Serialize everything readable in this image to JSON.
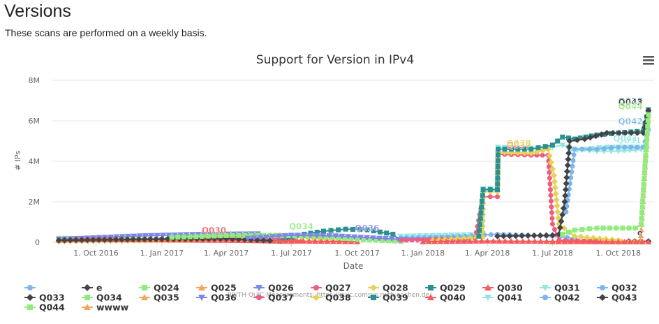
{
  "page": {
    "heading": "Versions",
    "description": "These scans are performed on a weekly basis."
  },
  "menu_icon": "hamburger-menu-icon",
  "chart_data": {
    "type": "line",
    "title": "Support for Version in IPv4",
    "xlabel": "Date",
    "ylabel": "# IPs",
    "credits": "RWTH QUIC Measurements: https://quic.comsys.rwth-aachen.de/",
    "x_range": [
      "2016-08-01",
      "2018-11-20"
    ],
    "ylim": [
      0,
      8000000
    ],
    "y_ticks": [
      {
        "v": 0,
        "label": "0"
      },
      {
        "v": 2000000,
        "label": "2M"
      },
      {
        "v": 4000000,
        "label": "4M"
      },
      {
        "v": 6000000,
        "label": "6M"
      },
      {
        "v": 8000000,
        "label": "8M"
      }
    ],
    "x_ticks": [
      {
        "date": "2016-10-01",
        "label": "1. Oct 2016"
      },
      {
        "date": "2017-01-01",
        "label": "1. Jan 2017"
      },
      {
        "date": "2017-04-01",
        "label": "1. Apr 2017"
      },
      {
        "date": "2017-07-01",
        "label": "1. Jul 2017"
      },
      {
        "date": "2017-10-01",
        "label": "1. Oct 2017"
      },
      {
        "date": "2018-01-01",
        "label": "1. Jan 2018"
      },
      {
        "date": "2018-04-01",
        "label": "1. Apr 2018"
      },
      {
        "date": "2018-07-01",
        "label": "1. Jul 2018"
      },
      {
        "date": "2018-10-01",
        "label": "1. Oct 2018"
      }
    ],
    "grid": true,
    "legend_position": "bottom",
    "series": [
      {
        "name": "",
        "color": "#7cb5ec",
        "marker": "circle",
        "points": []
      },
      {
        "name": "e",
        "color": "#434348",
        "marker": "diamond",
        "label": "e",
        "points": [
          [
            "2018-10-15",
            50000
          ],
          [
            "2018-11-01",
            50000
          ],
          [
            "2018-11-12",
            50000
          ]
        ]
      },
      {
        "name": "Q024",
        "color": "#90ed7d",
        "marker": "square",
        "points": [
          [
            "2016-08-10",
            200000
          ],
          [
            "2016-10-01",
            190000
          ],
          [
            "2017-01-01",
            150000
          ],
          [
            "2017-04-01",
            120000
          ],
          [
            "2017-06-15",
            80000
          ]
        ]
      },
      {
        "name": "Q025",
        "color": "#f7a35c",
        "marker": "triangle",
        "points": [
          [
            "2016-08-10",
            120000
          ],
          [
            "2016-12-01",
            110000
          ],
          [
            "2017-04-01",
            90000
          ],
          [
            "2017-07-01",
            40000
          ]
        ]
      },
      {
        "name": "Q026",
        "color": "#8085e9",
        "marker": "triangle-down",
        "points": [
          [
            "2016-08-10",
            150000
          ],
          [
            "2016-12-01",
            320000
          ],
          [
            "2017-03-01",
            400000
          ],
          [
            "2017-05-15",
            420000
          ],
          [
            "2017-06-15",
            100000
          ]
        ]
      },
      {
        "name": "Q027",
        "color": "#f15c80",
        "marker": "circle",
        "points": [
          [
            "2016-08-10",
            60000
          ],
          [
            "2017-02-01",
            150000
          ],
          [
            "2017-04-15",
            280000
          ],
          [
            "2017-06-01",
            300000
          ],
          [
            "2017-07-15",
            60000
          ]
        ]
      },
      {
        "name": "Q028",
        "color": "#e4d354",
        "marker": "diamond",
        "points": [
          [
            "2016-08-10",
            40000
          ],
          [
            "2017-04-01",
            120000
          ],
          [
            "2017-06-15",
            350000
          ],
          [
            "2017-08-01",
            200000
          ],
          [
            "2017-10-01",
            30000
          ]
        ]
      },
      {
        "name": "Q029",
        "color": "#2b908f",
        "marker": "square",
        "points": [
          [
            "2017-06-15",
            50000
          ],
          [
            "2017-07-10",
            350000
          ],
          [
            "2017-08-15",
            550000
          ],
          [
            "2017-09-15",
            650000
          ],
          [
            "2017-10-15",
            620000
          ],
          [
            "2017-11-20",
            400000
          ],
          [
            "2017-12-01",
            50000
          ]
        ]
      },
      {
        "name": "Q030",
        "color": "#f45b5b",
        "marker": "triangle",
        "label": "Q030",
        "points": [
          [
            "2016-08-10",
            100000
          ],
          [
            "2016-10-01",
            140000
          ],
          [
            "2017-01-01",
            120000
          ],
          [
            "2017-04-01",
            100000
          ],
          [
            "2017-07-01",
            60000
          ],
          [
            "2017-10-01",
            30000
          ]
        ]
      },
      {
        "name": "Q031",
        "color": "#91e8e1",
        "marker": "triangle-down",
        "label": "Q031",
        "points": [
          [
            "2017-12-01",
            300000
          ],
          [
            "2018-02-01",
            350000
          ],
          [
            "2018-03-25",
            400000
          ],
          [
            "2018-03-26",
            2650000
          ],
          [
            "2018-04-15",
            2650000
          ],
          [
            "2018-04-16",
            4700000
          ],
          [
            "2018-06-01",
            4650000
          ],
          [
            "2018-07-01",
            4700000
          ],
          [
            "2018-07-15",
            4800000
          ],
          [
            "2018-08-01",
            4600000
          ],
          [
            "2018-09-01",
            4500000
          ],
          [
            "2018-10-01",
            4500000
          ],
          [
            "2018-11-10",
            4600000
          ]
        ]
      },
      {
        "name": "Q032",
        "color": "#7cb5ec",
        "marker": "circle",
        "points": [
          [
            "2017-12-01",
            200000
          ],
          [
            "2018-03-01",
            300000
          ],
          [
            "2018-04-15",
            400000
          ],
          [
            "2018-07-01",
            300000
          ],
          [
            "2018-08-01",
            200000
          ]
        ]
      },
      {
        "name": "Q033",
        "color": "#434348",
        "marker": "diamond",
        "points": [
          [
            "2016-08-10",
            100000
          ],
          [
            "2017-01-01",
            160000
          ],
          [
            "2017-04-01",
            180000
          ],
          [
            "2017-06-01",
            80000
          ]
        ]
      },
      {
        "name": "Q034",
        "color": "#90ed7d",
        "marker": "square",
        "label": "Q034",
        "points": [
          [
            "2017-01-15",
            250000
          ],
          [
            "2017-04-01",
            330000
          ],
          [
            "2017-06-01",
            350000
          ],
          [
            "2017-08-01",
            300000
          ],
          [
            "2017-10-01",
            150000
          ],
          [
            "2017-12-01",
            50000
          ]
        ]
      },
      {
        "name": "Q035",
        "color": "#f7a35c",
        "marker": "triangle",
        "label": "Q035",
        "points": [
          [
            "2018-07-01",
            20000
          ],
          [
            "2018-09-01",
            40000
          ],
          [
            "2018-11-01",
            40000
          ],
          [
            "2018-11-12",
            6550000
          ]
        ]
      },
      {
        "name": "Q036",
        "color": "#8085e9",
        "marker": "triangle-down",
        "label": "Q036",
        "points": [
          [
            "2017-05-01",
            200000
          ],
          [
            "2017-07-01",
            350000
          ],
          [
            "2017-09-01",
            320000
          ],
          [
            "2017-11-01",
            200000
          ],
          [
            "2018-01-01",
            100000
          ],
          [
            "2018-03-01",
            50000
          ]
        ]
      },
      {
        "name": "Q037",
        "color": "#f15c80",
        "marker": "circle",
        "label": "Q037",
        "points": [
          [
            "2017-12-01",
            100000
          ],
          [
            "2018-03-15",
            200000
          ],
          [
            "2018-03-26",
            2250000
          ],
          [
            "2018-04-15",
            2250000
          ],
          [
            "2018-04-16",
            4350000
          ],
          [
            "2018-06-01",
            4300000
          ],
          [
            "2018-06-25",
            4300000
          ],
          [
            "2018-07-01",
            900000
          ],
          [
            "2018-07-10",
            100000
          ],
          [
            "2018-09-01",
            50000
          ]
        ]
      },
      {
        "name": "Q038",
        "color": "#e4d354",
        "marker": "diamond",
        "label": "Q038",
        "points": [
          [
            "2018-01-15",
            100000
          ],
          [
            "2018-03-25",
            250000
          ],
          [
            "2018-03-26",
            2500000
          ],
          [
            "2018-04-15",
            2500000
          ],
          [
            "2018-04-16",
            4450000
          ],
          [
            "2018-06-01",
            4400000
          ],
          [
            "2018-06-25",
            4600000
          ],
          [
            "2018-07-03",
            3300000
          ],
          [
            "2018-07-10",
            900000
          ],
          [
            "2018-08-01",
            300000
          ],
          [
            "2018-10-01",
            100000
          ]
        ]
      },
      {
        "name": "Q039",
        "color": "#2b908f",
        "marker": "square",
        "label": "Q039",
        "points": [
          [
            "2018-03-20",
            300000
          ],
          [
            "2018-03-26",
            2600000
          ],
          [
            "2018-04-15",
            2600000
          ],
          [
            "2018-04-16",
            4600000
          ],
          [
            "2018-06-01",
            4600000
          ],
          [
            "2018-07-01",
            4800000
          ],
          [
            "2018-07-15",
            5200000
          ],
          [
            "2018-08-01",
            5100000
          ],
          [
            "2018-09-01",
            5300000
          ],
          [
            "2018-10-01",
            5400000
          ],
          [
            "2018-11-05",
            5500000
          ],
          [
            "2018-11-12",
            6550000
          ]
        ]
      },
      {
        "name": "Q040",
        "color": "#f45b5b",
        "marker": "triangle",
        "points": [
          [
            "2018-01-01",
            30000
          ],
          [
            "2018-04-01",
            60000
          ],
          [
            "2018-07-01",
            40000
          ],
          [
            "2018-10-01",
            20000
          ],
          [
            "2018-11-12",
            20000
          ]
        ]
      },
      {
        "name": "Q041",
        "color": "#91e8e1",
        "marker": "triangle-down",
        "label": "Q041",
        "points": [
          [
            "2018-07-25",
            4500000
          ],
          [
            "2018-08-15",
            4600000
          ],
          [
            "2018-09-15",
            4700000
          ],
          [
            "2018-11-05",
            4700000
          ]
        ]
      },
      {
        "name": "Q042",
        "color": "#7cb5ec",
        "marker": "circle",
        "label": "Q042",
        "points": [
          [
            "2018-07-20",
            1500000
          ],
          [
            "2018-08-01",
            4600000
          ],
          [
            "2018-09-01",
            4600000
          ],
          [
            "2018-10-01",
            4700000
          ],
          [
            "2018-11-05",
            4700000
          ],
          [
            "2018-11-12",
            5550000
          ]
        ]
      },
      {
        "name": "Q043",
        "color": "#434348",
        "marker": "diamond",
        "label": "Q043",
        "points": [
          [
            "2018-04-15",
            300000
          ],
          [
            "2018-07-01",
            350000
          ],
          [
            "2018-07-10",
            400000
          ],
          [
            "2018-07-18",
            2000000
          ],
          [
            "2018-07-25",
            5000000
          ],
          [
            "2018-08-15",
            5100000
          ],
          [
            "2018-09-15",
            5400000
          ],
          [
            "2018-11-05",
            5400000
          ],
          [
            "2018-11-12",
            6500000
          ]
        ]
      },
      {
        "name": "Q044",
        "color": "#90ed7d",
        "marker": "square",
        "label": "Q044",
        "points": [
          [
            "2018-07-15",
            400000
          ],
          [
            "2018-08-01",
            600000
          ],
          [
            "2018-09-01",
            700000
          ],
          [
            "2018-10-25",
            700000
          ],
          [
            "2018-11-02",
            900000
          ],
          [
            "2018-11-12",
            6300000
          ]
        ]
      },
      {
        "name": "wwww",
        "color": "#f7a35c",
        "marker": "triangle",
        "points": []
      }
    ]
  }
}
